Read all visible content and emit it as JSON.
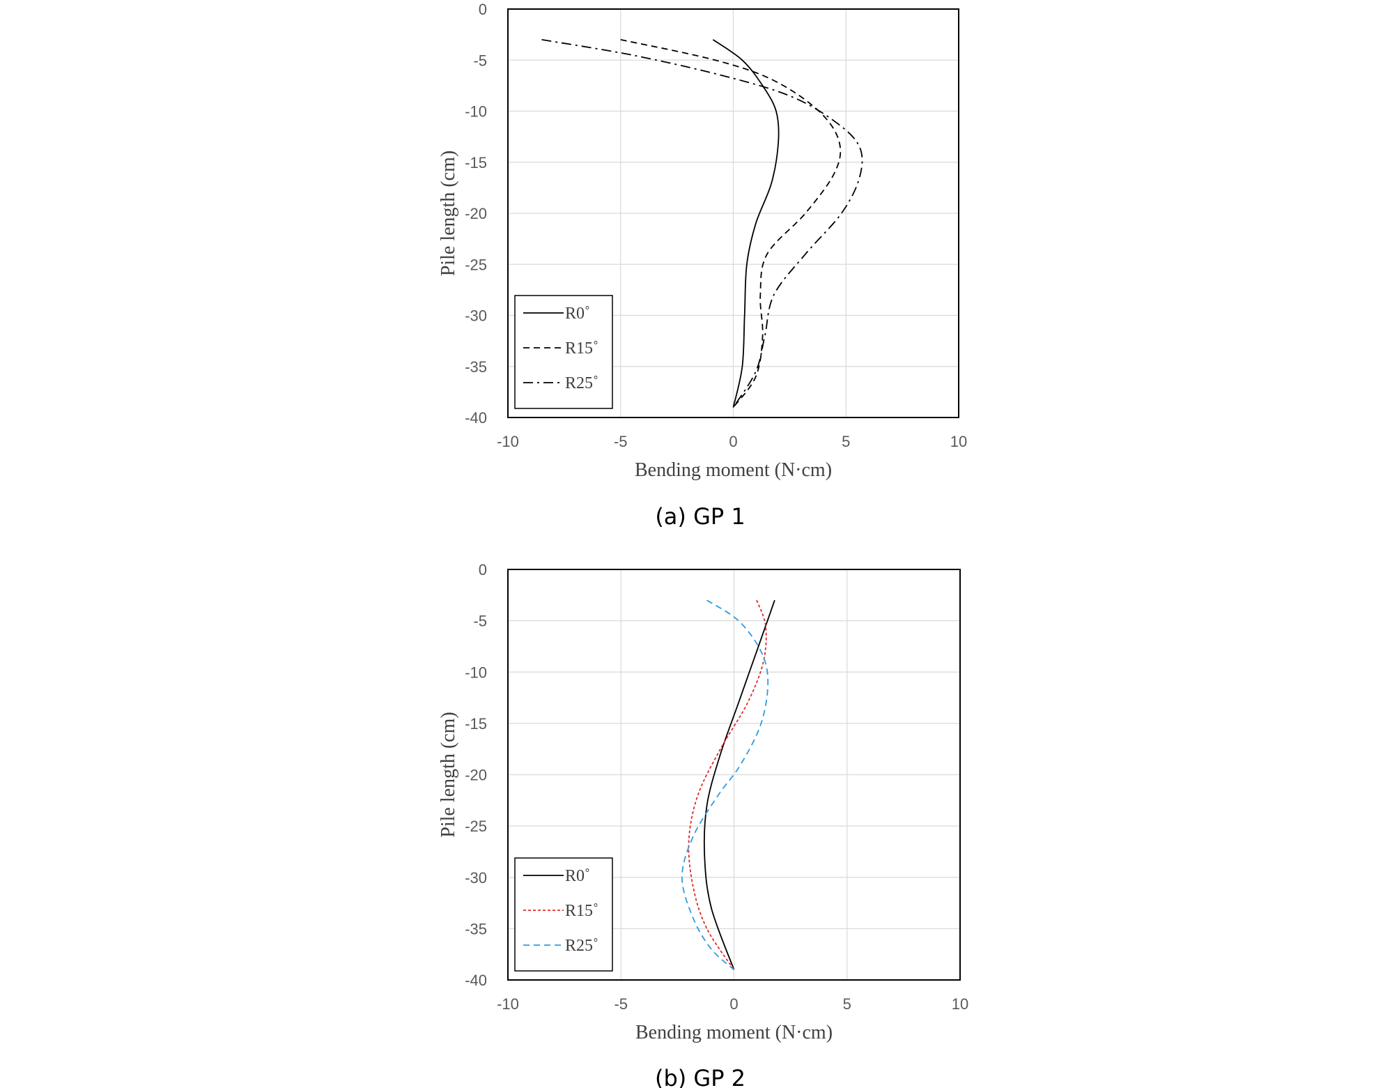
{
  "chart_data": [
    {
      "type": "line",
      "caption": "(a) GP 1",
      "xlabel": "Bending moment (N·cm)",
      "ylabel": "Pile length (cm)",
      "xlim": [
        -10,
        10
      ],
      "ylim": [
        -40,
        0
      ],
      "xticks": [
        -10,
        -5,
        0,
        5,
        10
      ],
      "yticks": [
        0,
        -5,
        -10,
        -15,
        -20,
        -25,
        -30,
        -35,
        -40
      ],
      "grid": "horizontal and vertical",
      "legend": "bottom-left",
      "series": [
        {
          "name": "R0˚",
          "style": "solid",
          "color": "#000000",
          "points": [
            [
              -0.9,
              -3
            ],
            [
              0.4,
              -5
            ],
            [
              1.3,
              -7.5
            ],
            [
              1.9,
              -10
            ],
            [
              2.0,
              -13
            ],
            [
              1.7,
              -17
            ],
            [
              1.0,
              -21
            ],
            [
              0.6,
              -25
            ],
            [
              0.5,
              -30
            ],
            [
              0.4,
              -35
            ],
            [
              0.0,
              -39
            ]
          ]
        },
        {
          "name": "R15˚",
          "style": "dashed",
          "color": "#000000",
          "points": [
            [
              -5.0,
              -3
            ],
            [
              -0.8,
              -5
            ],
            [
              1.8,
              -7
            ],
            [
              3.8,
              -10
            ],
            [
              4.7,
              -13
            ],
            [
              4.5,
              -16
            ],
            [
              3.2,
              -20
            ],
            [
              1.5,
              -24
            ],
            [
              1.2,
              -28
            ],
            [
              1.3,
              -32
            ],
            [
              1.0,
              -36
            ],
            [
              0.0,
              -39
            ]
          ]
        },
        {
          "name": "R25˚",
          "style": "dash-dot",
          "color": "#000000",
          "points": [
            [
              -8.5,
              -3
            ],
            [
              -4.5,
              -4.5
            ],
            [
              -0.5,
              -6.5
            ],
            [
              2.5,
              -8.5
            ],
            [
              4.5,
              -11
            ],
            [
              5.6,
              -13.5
            ],
            [
              5.6,
              -16.5
            ],
            [
              4.8,
              -20
            ],
            [
              3.2,
              -24
            ],
            [
              1.8,
              -28
            ],
            [
              1.4,
              -32
            ],
            [
              1.0,
              -35.5
            ],
            [
              0.0,
              -39
            ]
          ]
        }
      ]
    },
    {
      "type": "line",
      "caption": "(b) GP 2",
      "xlabel": "Bending moment (N·cm)",
      "ylabel": "Pile length (cm)",
      "xlim": [
        -10,
        10
      ],
      "ylim": [
        -40,
        0
      ],
      "xticks": [
        -10,
        -5,
        0,
        5,
        10
      ],
      "yticks": [
        0,
        -5,
        -10,
        -15,
        -20,
        -25,
        -30,
        -35,
        -40
      ],
      "grid": "horizontal and vertical",
      "legend": "bottom-left",
      "series": [
        {
          "name": "R0˚",
          "style": "solid",
          "color": "#000000",
          "points": [
            [
              1.8,
              -3
            ],
            [
              1.0,
              -8
            ],
            [
              0.2,
              -13
            ],
            [
              -0.6,
              -18
            ],
            [
              -1.2,
              -23
            ],
            [
              -1.3,
              -28
            ],
            [
              -1.0,
              -33
            ],
            [
              0.0,
              -39
            ]
          ]
        },
        {
          "name": "R15˚",
          "style": "dotted",
          "color": "#e32a2a",
          "points": [
            [
              1.0,
              -3
            ],
            [
              1.4,
              -5.5
            ],
            [
              1.3,
              -9
            ],
            [
              0.6,
              -13
            ],
            [
              -0.6,
              -17.5
            ],
            [
              -1.6,
              -22
            ],
            [
              -2.0,
              -26.5
            ],
            [
              -1.8,
              -31
            ],
            [
              -1.2,
              -35
            ],
            [
              0.0,
              -39
            ]
          ]
        },
        {
          "name": "R25˚",
          "style": "dashed",
          "color": "#2e9be0",
          "points": [
            [
              -1.2,
              -3
            ],
            [
              0.2,
              -5
            ],
            [
              1.2,
              -8
            ],
            [
              1.5,
              -11
            ],
            [
              1.2,
              -15
            ],
            [
              0.3,
              -19
            ],
            [
              -0.7,
              -22
            ],
            [
              -1.8,
              -26
            ],
            [
              -2.3,
              -30
            ],
            [
              -1.8,
              -34
            ],
            [
              -1.0,
              -37
            ],
            [
              0.0,
              -39
            ]
          ]
        }
      ]
    }
  ]
}
